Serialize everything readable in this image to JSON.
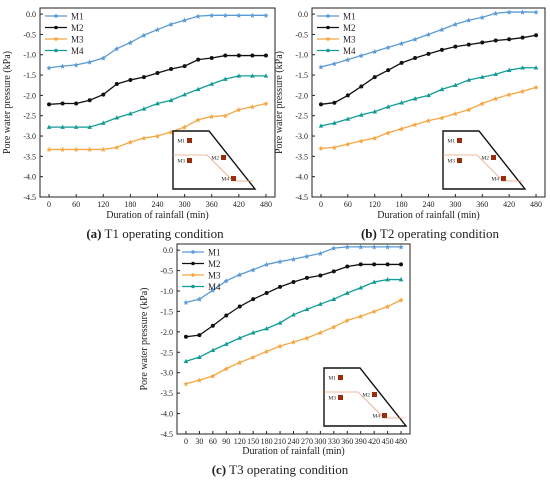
{
  "chart_data": [
    {
      "type": "line",
      "panel": "(a)",
      "caption": "T1 operating condition",
      "xlabel": "Duration of rainfall (min)",
      "ylabel": "Pore water pressure (kPa)",
      "xticks": [
        0,
        60,
        120,
        180,
        240,
        300,
        360,
        420,
        480
      ],
      "yticks": [
        "0.0",
        "-0.5",
        "-1.0",
        "-1.5",
        "-2.0",
        "-2.5",
        "-3.0",
        "-3.5",
        "-4.0",
        "-4.5"
      ],
      "xlim": [
        -20,
        500
      ],
      "ylim": [
        -4.5,
        0.15
      ],
      "legend": "top-left",
      "inset_labels": [
        "M1",
        "M2",
        "M3",
        "M4"
      ],
      "x": [
        0,
        30,
        60,
        90,
        120,
        150,
        180,
        210,
        240,
        270,
        300,
        330,
        360,
        390,
        420,
        450,
        480
      ],
      "series": [
        {
          "name": "M1",
          "values": [
            -1.32,
            -1.28,
            -1.25,
            -1.18,
            -1.08,
            -0.85,
            -0.7,
            -0.52,
            -0.38,
            -0.25,
            -0.15,
            -0.05,
            -0.03,
            -0.03,
            -0.03,
            -0.03,
            -0.03
          ]
        },
        {
          "name": "M2",
          "values": [
            -2.22,
            -2.2,
            -2.2,
            -2.12,
            -1.98,
            -1.72,
            -1.62,
            -1.55,
            -1.45,
            -1.35,
            -1.28,
            -1.12,
            -1.08,
            -1.02,
            -1.02,
            -1.02,
            -1.02
          ]
        },
        {
          "name": "M3",
          "values": [
            -3.33,
            -3.33,
            -3.33,
            -3.33,
            -3.33,
            -3.28,
            -3.15,
            -3.05,
            -3.0,
            -2.9,
            -2.78,
            -2.6,
            -2.52,
            -2.5,
            -2.35,
            -2.28,
            -2.2
          ]
        },
        {
          "name": "M4",
          "values": [
            -2.78,
            -2.78,
            -2.78,
            -2.78,
            -2.68,
            -2.55,
            -2.45,
            -2.33,
            -2.2,
            -2.12,
            -1.98,
            -1.85,
            -1.72,
            -1.6,
            -1.52,
            -1.52,
            -1.52
          ]
        }
      ]
    },
    {
      "type": "line",
      "panel": "(b)",
      "caption": "T2 operating condition",
      "xlabel": "Duration of rainfall (min)",
      "ylabel": "Pore water pressure (kPa)",
      "xticks": [
        0,
        60,
        120,
        180,
        240,
        300,
        360,
        420,
        480
      ],
      "yticks": [
        "0.0",
        "-0.5",
        "-1.0",
        "-1.5",
        "-2.0",
        "-2.5",
        "-3.0",
        "-3.5",
        "-4.0",
        "-4.5"
      ],
      "xlim": [
        -20,
        500
      ],
      "ylim": [
        -4.5,
        0.15
      ],
      "legend": "top-left",
      "inset_labels": [
        "M1",
        "M2",
        "M3",
        "M4"
      ],
      "x": [
        0,
        30,
        60,
        90,
        120,
        150,
        180,
        210,
        240,
        270,
        300,
        330,
        360,
        390,
        420,
        450,
        480
      ],
      "series": [
        {
          "name": "M1",
          "values": [
            -1.3,
            -1.22,
            -1.12,
            -1.02,
            -0.92,
            -0.82,
            -0.72,
            -0.62,
            -0.5,
            -0.38,
            -0.25,
            -0.15,
            -0.08,
            0.02,
            0.05,
            0.05,
            0.05
          ]
        },
        {
          "name": "M2",
          "values": [
            -2.22,
            -2.18,
            -2.0,
            -1.78,
            -1.55,
            -1.38,
            -1.2,
            -1.08,
            -0.98,
            -0.88,
            -0.8,
            -0.75,
            -0.7,
            -0.65,
            -0.62,
            -0.58,
            -0.52
          ]
        },
        {
          "name": "M3",
          "values": [
            -3.3,
            -3.28,
            -3.2,
            -3.12,
            -3.05,
            -2.92,
            -2.82,
            -2.72,
            -2.62,
            -2.55,
            -2.45,
            -2.35,
            -2.2,
            -2.08,
            -1.98,
            -1.9,
            -1.8
          ]
        },
        {
          "name": "M4",
          "values": [
            -2.75,
            -2.68,
            -2.58,
            -2.48,
            -2.4,
            -2.28,
            -2.18,
            -2.08,
            -2.0,
            -1.85,
            -1.75,
            -1.62,
            -1.55,
            -1.48,
            -1.38,
            -1.32,
            -1.32
          ]
        }
      ]
    },
    {
      "type": "line",
      "panel": "(c)",
      "caption": "T3 operating condition",
      "xlabel": "Duration of rainfall (min)",
      "ylabel": "Pore water pressure (kPa)",
      "xticks": [
        0,
        30,
        60,
        90,
        120,
        150,
        180,
        210,
        240,
        270,
        300,
        330,
        360,
        390,
        420,
        450,
        480
      ],
      "yticks": [
        "0.0",
        "-0.5",
        "-1.0",
        "-1.5",
        "-2.0",
        "-2.5",
        "-3.0",
        "-3.5",
        "-4.0",
        "-4.5"
      ],
      "xlim": [
        -20,
        500
      ],
      "ylim": [
        -4.5,
        0.15
      ],
      "legend": "top-left",
      "inset_labels": [
        "M1",
        "M2",
        "M3",
        "M4"
      ],
      "x": [
        0,
        30,
        60,
        90,
        120,
        150,
        180,
        210,
        240,
        270,
        300,
        330,
        360,
        390,
        420,
        450,
        480
      ],
      "series": [
        {
          "name": "M1",
          "values": [
            -1.28,
            -1.2,
            -0.98,
            -0.75,
            -0.6,
            -0.48,
            -0.35,
            -0.28,
            -0.22,
            -0.15,
            -0.08,
            0.05,
            0.08,
            0.08,
            0.08,
            0.08,
            0.08
          ]
        },
        {
          "name": "M2",
          "values": [
            -2.12,
            -2.08,
            -1.85,
            -1.6,
            -1.38,
            -1.2,
            -1.05,
            -0.9,
            -0.78,
            -0.68,
            -0.62,
            -0.52,
            -0.4,
            -0.35,
            -0.35,
            -0.35,
            -0.35
          ]
        },
        {
          "name": "M3",
          "values": [
            -3.27,
            -3.18,
            -3.08,
            -2.9,
            -2.75,
            -2.62,
            -2.48,
            -2.35,
            -2.25,
            -2.15,
            -2.02,
            -1.88,
            -1.72,
            -1.62,
            -1.5,
            -1.38,
            -1.22
          ]
        },
        {
          "name": "M4",
          "values": [
            -2.72,
            -2.62,
            -2.45,
            -2.3,
            -2.15,
            -2.02,
            -1.92,
            -1.78,
            -1.58,
            -1.45,
            -1.32,
            -1.2,
            -1.05,
            -0.92,
            -0.78,
            -0.72,
            -0.72
          ]
        }
      ]
    }
  ],
  "colors": {
    "M1": "#5b9bd5",
    "M2": "#111111",
    "M3": "#f4a742",
    "M4": "#139c96",
    "marker_inset": "#9b2d0f",
    "slope_line": "#e8a080"
  }
}
